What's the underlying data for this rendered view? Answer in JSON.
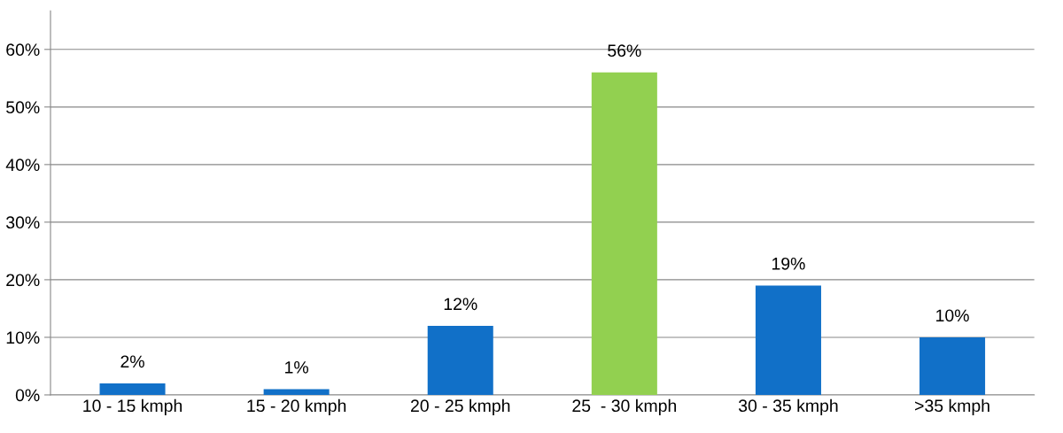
{
  "chart_data": {
    "type": "bar",
    "categories": [
      "10 - 15 kmph",
      "15 - 20 kmph",
      "20 - 25 kmph",
      "25  - 30 kmph",
      "30 - 35 kmph",
      ">35 kmph"
    ],
    "values": [
      2,
      1,
      12,
      56,
      19,
      10
    ],
    "colors": [
      "#1170c8",
      "#1170c8",
      "#1170c8",
      "#92d050",
      "#1170c8",
      "#1170c8"
    ],
    "value_labels": [
      "2%",
      "1%",
      "12%",
      "56%",
      "19%",
      "10%"
    ],
    "ylim": [
      0,
      66.7
    ],
    "yticks": [
      {
        "value": 0,
        "label": "0%"
      },
      {
        "value": 10,
        "label": "10%"
      },
      {
        "value": 20,
        "label": "20%"
      },
      {
        "value": 30,
        "label": "30%"
      },
      {
        "value": 40,
        "label": "40%"
      },
      {
        "value": 50,
        "label": "50%"
      },
      {
        "value": 60,
        "label": "60%"
      }
    ],
    "grid": "y",
    "legend": false
  }
}
